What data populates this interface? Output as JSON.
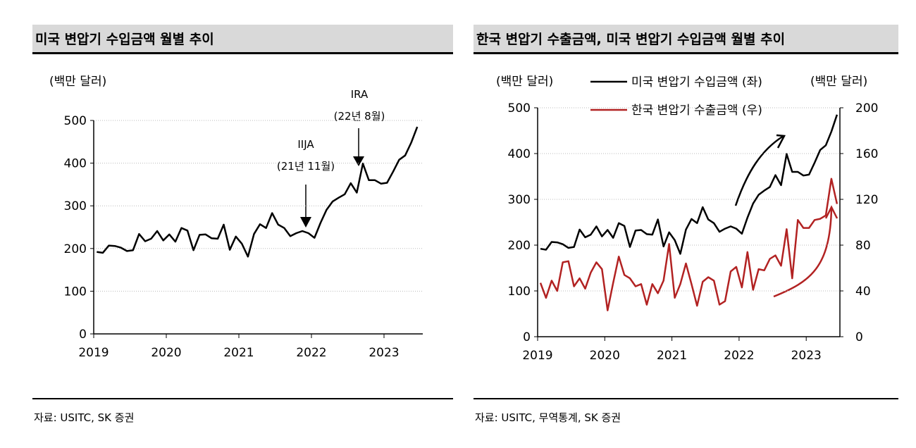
{
  "left": {
    "title": "미국 변압기 수입금액 월별 추이",
    "source": "자료: USITC, SK 증권",
    "unit": "(백만 달러)",
    "annotations": {
      "ira": "IRA",
      "ira_date": "(22년 8월)",
      "iija": "IIJA",
      "iija_date": "(21년 11월)"
    }
  },
  "right": {
    "title": "한국 변압기 수출금액, 미국 변압기 수입금액 월별 추이",
    "source": "자료: USITC, 무역통계, SK 증권",
    "unit_left": "(백만 달러)",
    "unit_right": "(백만 달러)",
    "legend": [
      "미국 변압기 수입금액 (좌)",
      "한국 변압기 수출금액 (우)"
    ]
  },
  "chart_data": [
    {
      "type": "line",
      "title": "미국 변압기 수입금액 월별 추이",
      "ylabel": "(백만 달러)",
      "x_start": "2019-01",
      "x_frequency": "monthly",
      "x_ticks": [
        "2019",
        "2020",
        "2021",
        "2022",
        "2023"
      ],
      "ylim": [
        0,
        500
      ],
      "y_ticks": [
        0,
        100,
        200,
        300,
        400,
        500
      ],
      "grid": true,
      "series": [
        {
          "color": "#000000",
          "values": [
            192,
            190,
            207,
            206,
            202,
            194,
            196,
            234,
            217,
            223,
            241,
            219,
            233,
            216,
            248,
            242,
            196,
            232,
            233,
            224,
            223,
            256,
            197,
            228,
            211,
            181,
            234,
            257,
            248,
            283,
            256,
            248,
            229,
            236,
            241,
            236,
            225,
            260,
            291,
            310,
            319,
            327,
            353,
            331,
            399,
            360,
            360,
            352,
            354,
            380,
            408,
            418,
            448,
            485
          ]
        }
      ],
      "annotations": [
        {
          "text": "IIJA (21년 11월)",
          "x": "2021-11"
        },
        {
          "text": "IRA (22년 8월)",
          "x": "2022-08"
        }
      ]
    },
    {
      "type": "line",
      "title": "한국 변압기 수출금액, 미국 변압기 수입금액 월별 추이",
      "ylabel": "(백만 달러)",
      "y2label": "(백만 달러)",
      "x_start": "2019-01",
      "x_frequency": "monthly",
      "x_ticks": [
        "2019",
        "2020",
        "2021",
        "2022",
        "2023"
      ],
      "ylim": [
        0,
        500
      ],
      "y_ticks": [
        0,
        100,
        200,
        300,
        400,
        500
      ],
      "y2lim": [
        0,
        200
      ],
      "y2_ticks": [
        0,
        40,
        80,
        120,
        160,
        200
      ],
      "grid": true,
      "legend": "top",
      "series": [
        {
          "name": "미국 변압기 수입금액 (좌)",
          "axis": "left",
          "color": "#000000",
          "values": [
            192,
            190,
            207,
            206,
            202,
            194,
            196,
            234,
            217,
            223,
            241,
            219,
            233,
            216,
            248,
            242,
            196,
            232,
            233,
            224,
            223,
            256,
            197,
            228,
            211,
            181,
            234,
            257,
            248,
            283,
            256,
            248,
            229,
            236,
            241,
            236,
            225,
            260,
            291,
            310,
            319,
            327,
            353,
            331,
            399,
            360,
            360,
            352,
            354,
            380,
            408,
            418,
            448,
            485
          ]
        },
        {
          "name": "한국 변압기 수출금액 (우)",
          "axis": "right",
          "color": "#b22222",
          "values": [
            47,
            34,
            49,
            40,
            65,
            66,
            44,
            51,
            42,
            56,
            65,
            59,
            23,
            47,
            70,
            54,
            51,
            44,
            46,
            28,
            46,
            38,
            49,
            81,
            34,
            46,
            64,
            46,
            27,
            48,
            52,
            49,
            28,
            31,
            57,
            61,
            43,
            74,
            41,
            59,
            58,
            68,
            71,
            62,
            94,
            51,
            102,
            95,
            95,
            102,
            103,
            106,
            138,
            116
          ]
        }
      ]
    }
  ]
}
